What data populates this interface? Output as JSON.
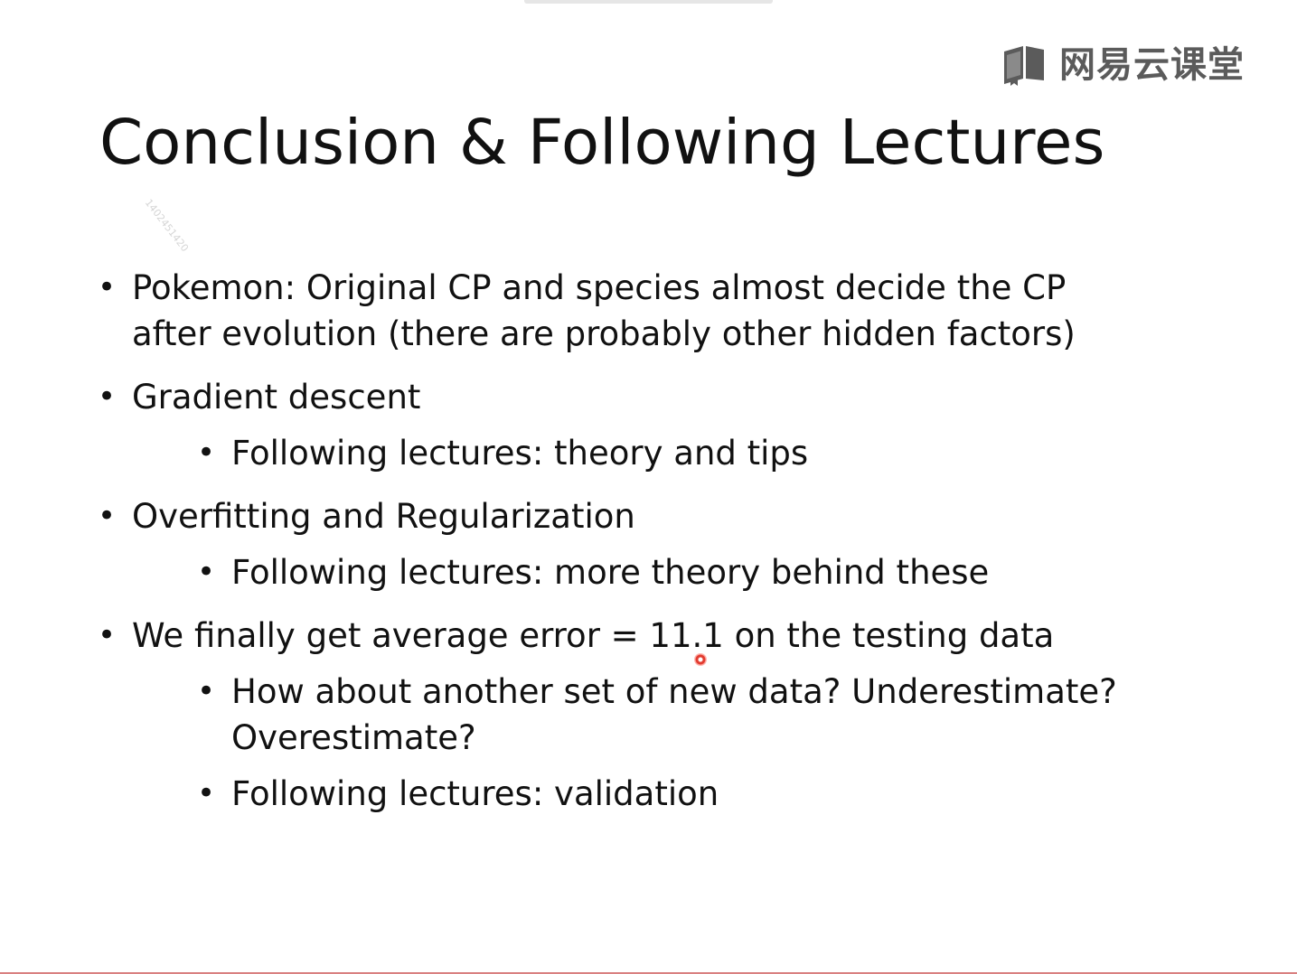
{
  "logo": {
    "icon": "netease-cloud-classroom-book-icon",
    "text": "网易云课堂"
  },
  "watermark": "1402451420",
  "title": "Conclusion & Following Lectures",
  "bullets": [
    {
      "lines": [
        "Pokemon: Original CP and species almost decide the CP",
        "after evolution (there are probably other hidden factors)"
      ],
      "subs": []
    },
    {
      "lines": [
        "Gradient descent"
      ],
      "subs": [
        {
          "lines": [
            "Following lectures: theory and tips"
          ]
        }
      ]
    },
    {
      "lines": [
        "Overfitting and Regularization"
      ],
      "subs": [
        {
          "lines": [
            "Following lectures: more theory behind these"
          ]
        }
      ]
    },
    {
      "lines": [
        "We finally get average error = 11.1 on the testing data"
      ],
      "subs": [
        {
          "lines": [
            "How about another set of new data? Underestimate?",
            "Overestimate?"
          ]
        },
        {
          "lines": [
            "Following lectures: validation"
          ]
        }
      ]
    }
  ],
  "colors": {
    "text": "#111111",
    "logo": "#5b5b5b",
    "cursor": "#e23b2f"
  }
}
